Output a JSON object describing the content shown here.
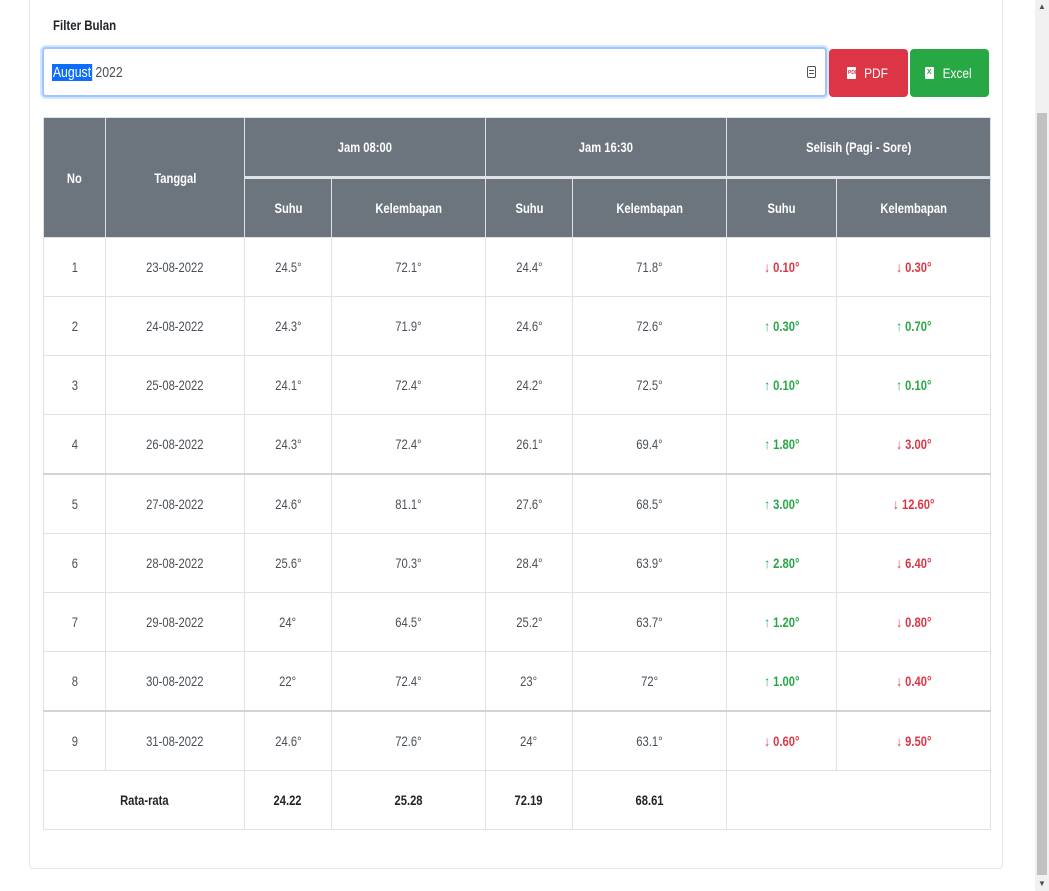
{
  "filter": {
    "label": "Filter Bulan",
    "month_selected": "August",
    "year": "2022"
  },
  "buttons": {
    "pdf_label": "PDF",
    "pdf_icon_text": "PDF",
    "excel_label": "Excel",
    "excel_icon_text": "X"
  },
  "table": {
    "headers": {
      "no": "No",
      "tanggal": "Tanggal",
      "jam_pagi": "Jam 08:00",
      "jam_sore": "Jam 16:30",
      "selisih": "Selisih (Pagi - Sore)",
      "suhu": "Suhu",
      "kelembapan": "Kelembapan"
    },
    "rows": [
      {
        "no": "1",
        "tanggal": "23-08-2022",
        "suhu_pagi": "24.5°",
        "kelembapan_pagi": "72.1°",
        "suhu_sore": "24.4°",
        "kelembapan_sore": "71.8°",
        "selisih_suhu": "0.10°",
        "selisih_suhu_dir": "down",
        "selisih_kelembapan": "0.30°",
        "selisih_kelembapan_dir": "down"
      },
      {
        "no": "2",
        "tanggal": "24-08-2022",
        "suhu_pagi": "24.3°",
        "kelembapan_pagi": "71.9°",
        "suhu_sore": "24.6°",
        "kelembapan_sore": "72.6°",
        "selisih_suhu": "0.30°",
        "selisih_suhu_dir": "up",
        "selisih_kelembapan": "0.70°",
        "selisih_kelembapan_dir": "up"
      },
      {
        "no": "3",
        "tanggal": "25-08-2022",
        "suhu_pagi": "24.1°",
        "kelembapan_pagi": "72.4°",
        "suhu_sore": "24.2°",
        "kelembapan_sore": "72.5°",
        "selisih_suhu": "0.10°",
        "selisih_suhu_dir": "up",
        "selisih_kelembapan": "0.10°",
        "selisih_kelembapan_dir": "up"
      },
      {
        "no": "4",
        "tanggal": "26-08-2022",
        "suhu_pagi": "24.3°",
        "kelembapan_pagi": "72.4°",
        "suhu_sore": "26.1°",
        "kelembapan_sore": "69.4°",
        "selisih_suhu": "1.80°",
        "selisih_suhu_dir": "up",
        "selisih_kelembapan": "3.00°",
        "selisih_kelembapan_dir": "down"
      },
      {
        "no": "5",
        "tanggal": "27-08-2022",
        "suhu_pagi": "24.6°",
        "kelembapan_pagi": "81.1°",
        "suhu_sore": "27.6°",
        "kelembapan_sore": "68.5°",
        "selisih_suhu": "3.00°",
        "selisih_suhu_dir": "up",
        "selisih_kelembapan": "12.60°",
        "selisih_kelembapan_dir": "down"
      },
      {
        "no": "6",
        "tanggal": "28-08-2022",
        "suhu_pagi": "25.6°",
        "kelembapan_pagi": "70.3°",
        "suhu_sore": "28.4°",
        "kelembapan_sore": "63.9°",
        "selisih_suhu": "2.80°",
        "selisih_suhu_dir": "up",
        "selisih_kelembapan": "6.40°",
        "selisih_kelembapan_dir": "down"
      },
      {
        "no": "7",
        "tanggal": "29-08-2022",
        "suhu_pagi": "24°",
        "kelembapan_pagi": "64.5°",
        "suhu_sore": "25.2°",
        "kelembapan_sore": "63.7°",
        "selisih_suhu": "1.20°",
        "selisih_suhu_dir": "up",
        "selisih_kelembapan": "0.80°",
        "selisih_kelembapan_dir": "down"
      },
      {
        "no": "8",
        "tanggal": "30-08-2022",
        "suhu_pagi": "22°",
        "kelembapan_pagi": "72.4°",
        "suhu_sore": "23°",
        "kelembapan_sore": "72°",
        "selisih_suhu": "1.00°",
        "selisih_suhu_dir": "up",
        "selisih_kelembapan": "0.40°",
        "selisih_kelembapan_dir": "down"
      },
      {
        "no": "9",
        "tanggal": "31-08-2022",
        "suhu_pagi": "24.6°",
        "kelembapan_pagi": "72.6°",
        "suhu_sore": "24°",
        "kelembapan_sore": "63.1°",
        "selisih_suhu": "0.60°",
        "selisih_suhu_dir": "down",
        "selisih_kelembapan": "9.50°",
        "selisih_kelembapan_dir": "down"
      }
    ],
    "average": {
      "label": "Rata-rata",
      "values": [
        "24.22",
        "25.28",
        "72.19",
        "68.61"
      ]
    }
  },
  "colors": {
    "header_bg": "#6c757d",
    "up": "#28a745",
    "down": "#dc3545",
    "pdf_button": "#dc3545",
    "excel_button": "#28a745"
  },
  "icons": {
    "up": "arrow-up-icon",
    "down": "arrow-down-icon",
    "calendar": "calendar-icon",
    "pdf": "pdf-file-icon",
    "excel": "excel-file-icon"
  }
}
